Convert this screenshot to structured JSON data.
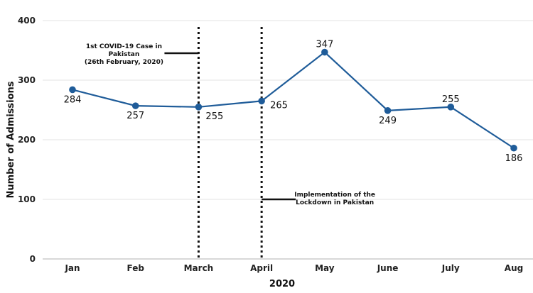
{
  "chart_data": {
    "type": "line",
    "categories": [
      "Jan",
      "Feb",
      "March",
      "April",
      "May",
      "June",
      "July",
      "Aug"
    ],
    "values": [
      284,
      257,
      255,
      265,
      347,
      249,
      255,
      186
    ],
    "xlabel": "2020",
    "ylabel": "Number of Admissions",
    "ylim": [
      0,
      400
    ],
    "yticks": [
      0,
      100,
      200,
      300,
      400
    ],
    "grid": "horizontal",
    "line_color": "#1f5c99",
    "annotations": [
      {
        "category": "March",
        "lines": [
          "1st COVID-19 Case in",
          "Pakistan",
          "(26th February, 2020)"
        ]
      },
      {
        "category": "April",
        "lines": [
          "Implementation of the",
          "Lockdown in Pakistan"
        ]
      }
    ]
  }
}
